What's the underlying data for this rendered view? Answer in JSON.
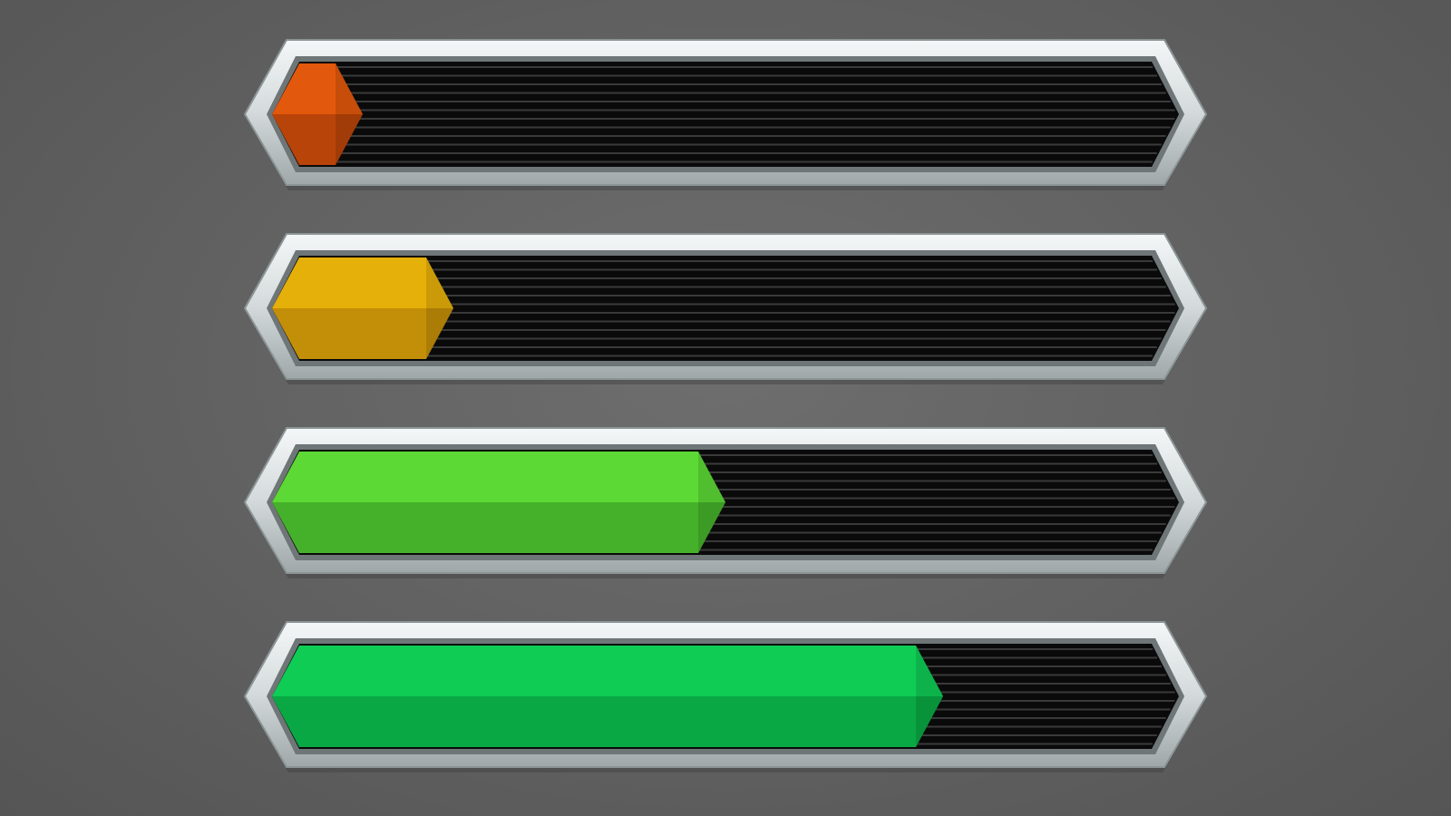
{
  "bars": [
    {
      "level": 0.1,
      "color_top": "#e2580c",
      "color_bottom": "#b8440a"
    },
    {
      "level": 0.2,
      "color_top": "#e6b00a",
      "color_bottom": "#c38f08"
    },
    {
      "level": 0.5,
      "color_top": "#5cd935",
      "color_bottom": "#45b12a"
    },
    {
      "level": 0.74,
      "color_top": "#0fcc55",
      "color_bottom": "#0aa844"
    }
  ],
  "colors": {
    "frame": "#d4dadb",
    "track": "#0a0a0a",
    "stripe": "#3a3a3a",
    "background": "#666666"
  }
}
